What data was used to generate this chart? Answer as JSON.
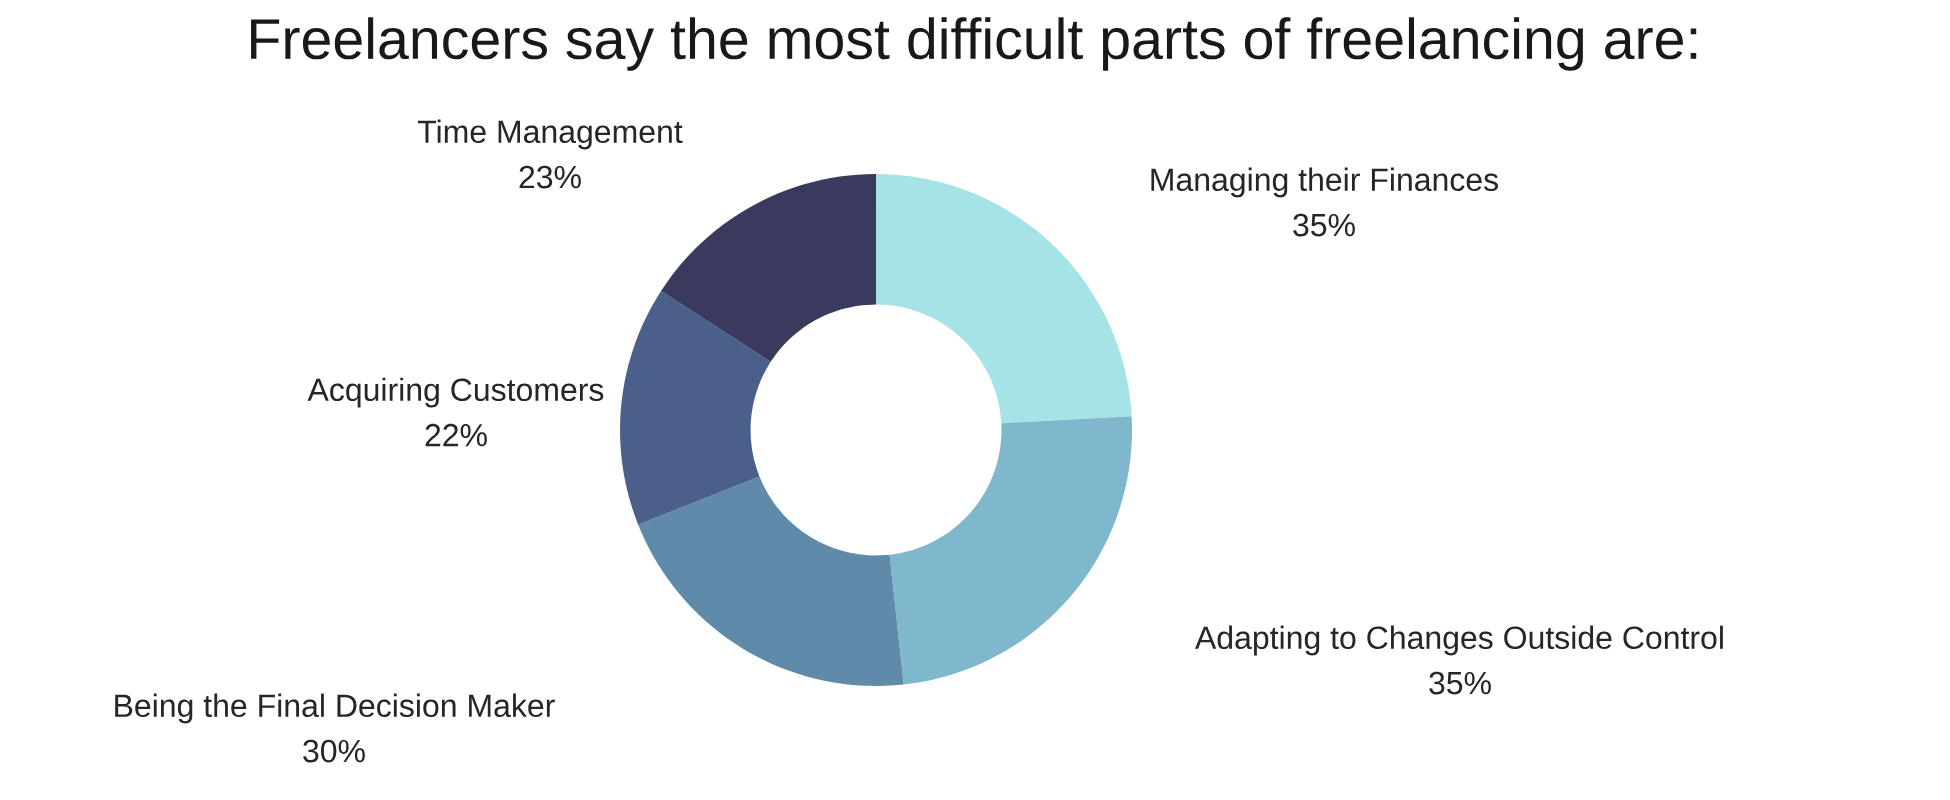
{
  "chart_data": {
    "type": "donut",
    "title": "Freelancers say the most difficult parts of freelancing are:",
    "categories": [
      "Managing their Finances",
      "Adapting to Changes Outside Control",
      "Being the Final Decision Maker",
      "Acquiring Customers",
      "Time Management"
    ],
    "values": [
      35,
      35,
      30,
      22,
      23
    ],
    "value_labels": [
      "35%",
      "35%",
      "30%",
      "22%",
      "23%"
    ],
    "colors": [
      "#a6e3e6",
      "#7fb8cc",
      "#5f8aaa",
      "#4a5f8a",
      "#3a3a5e"
    ]
  }
}
